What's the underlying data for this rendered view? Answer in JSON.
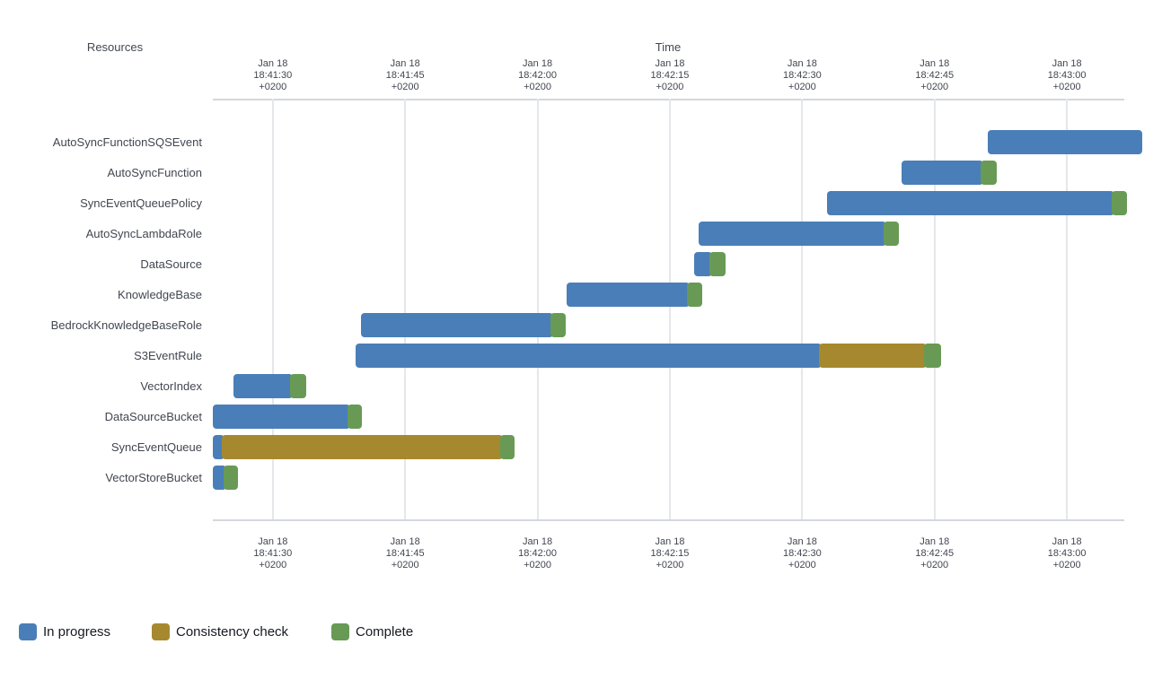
{
  "chart": {
    "resources_title": "Resources",
    "time_title": "Time"
  },
  "chart_data": {
    "type": "bar",
    "subtype": "gantt-timeline",
    "title": "",
    "xlabel": "Time",
    "ylabel": "Resources",
    "grid": true,
    "legend_position": "bottom-left",
    "time_axis": {
      "date_label": "Jan 18",
      "timezone_label": "+0200",
      "ticks": [
        "18:41:30",
        "18:41:45",
        "18:42:00",
        "18:42:15",
        "18:42:30",
        "18:42:45",
        "18:43:00"
      ],
      "domain_start": "18:41:23.2",
      "domain_end": "18:43:06.5"
    },
    "legend": [
      {
        "key": "in_progress",
        "label": "In progress",
        "color": "#4a7eb8"
      },
      {
        "key": "consistency_check",
        "label": "Consistency check",
        "color": "#a6892f"
      },
      {
        "key": "complete",
        "label": "Complete",
        "color": "#689a55"
      }
    ],
    "resources": [
      {
        "name": "AutoSyncFunctionSQSEvent",
        "segments": [
          {
            "status": "in_progress",
            "start": "18:42:51.0",
            "end": "18:43:08.5"
          }
        ]
      },
      {
        "name": "AutoSyncFunction",
        "segments": [
          {
            "status": "in_progress",
            "start": "18:42:41.3",
            "end": "18:42:50.5"
          },
          {
            "status": "complete",
            "start": "18:42:50.5",
            "end": "18:42:52.0"
          }
        ]
      },
      {
        "name": "SyncEventQueuePolicy",
        "segments": [
          {
            "status": "in_progress",
            "start": "18:42:32.8",
            "end": "18:43:05.4"
          },
          {
            "status": "complete",
            "start": "18:43:05.4",
            "end": "18:43:06.8"
          }
        ]
      },
      {
        "name": "AutoSyncLambdaRole",
        "segments": [
          {
            "status": "in_progress",
            "start": "18:42:18.3",
            "end": "18:42:39.5"
          },
          {
            "status": "complete",
            "start": "18:42:39.5",
            "end": "18:42:41.0"
          }
        ]
      },
      {
        "name": "DataSource",
        "segments": [
          {
            "status": "in_progress",
            "start": "18:42:17.8",
            "end": "18:42:19.8"
          },
          {
            "status": "complete",
            "start": "18:42:19.8",
            "end": "18:42:21.3"
          }
        ]
      },
      {
        "name": "KnowledgeBase",
        "segments": [
          {
            "status": "in_progress",
            "start": "18:42:03.3",
            "end": "18:42:17.2"
          },
          {
            "status": "complete",
            "start": "18:42:17.2",
            "end": "18:42:18.7"
          }
        ]
      },
      {
        "name": "BedrockKnowledgeBaseRole",
        "segments": [
          {
            "status": "in_progress",
            "start": "18:41:40.0",
            "end": "18:42:01.8"
          },
          {
            "status": "complete",
            "start": "18:42:01.8",
            "end": "18:42:03.2"
          }
        ]
      },
      {
        "name": "S3EventRule",
        "segments": [
          {
            "status": "in_progress",
            "start": "18:41:39.4",
            "end": "18:42:32.2"
          },
          {
            "status": "consistency_check",
            "start": "18:42:32.2",
            "end": "18:42:44.1"
          },
          {
            "status": "complete",
            "start": "18:42:44.1",
            "end": "18:42:45.7"
          }
        ]
      },
      {
        "name": "VectorIndex",
        "segments": [
          {
            "status": "in_progress",
            "start": "18:41:25.5",
            "end": "18:41:32.3"
          },
          {
            "status": "complete",
            "start": "18:41:32.3",
            "end": "18:41:33.8"
          }
        ]
      },
      {
        "name": "DataSourceBucket",
        "segments": [
          {
            "status": "in_progress",
            "start": "18:41:23.2",
            "end": "18:41:38.8"
          },
          {
            "status": "complete",
            "start": "18:41:38.8",
            "end": "18:41:40.1"
          }
        ]
      },
      {
        "name": "SyncEventQueue",
        "segments": [
          {
            "status": "in_progress",
            "start": "18:41:23.2",
            "end": "18:41:24.5"
          },
          {
            "status": "consistency_check",
            "start": "18:41:24.5",
            "end": "18:41:56.1"
          },
          {
            "status": "complete",
            "start": "18:41:56.1",
            "end": "18:41:57.4"
          }
        ]
      },
      {
        "name": "VectorStoreBucket",
        "segments": [
          {
            "status": "in_progress",
            "start": "18:41:23.2",
            "end": "18:41:24.7"
          },
          {
            "status": "complete",
            "start": "18:41:24.7",
            "end": "18:41:26.0"
          }
        ]
      }
    ]
  }
}
